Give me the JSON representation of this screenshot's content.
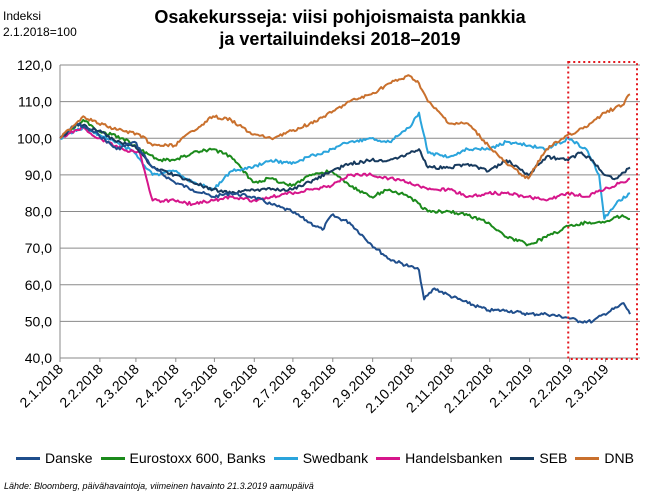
{
  "chart_data": {
    "type": "line",
    "title": "Osakekursseja: viisi pohjoismaista pankkia ja vertailuindeksi 2018–2019",
    "title_lines": [
      "Osakekursseja: viisi pohjoismaista pankkia",
      "ja vertailuindeksi 2018–2019"
    ],
    "ylabel_lines": [
      "Indeksi",
      "2.1.2018=100"
    ],
    "ylim": [
      40,
      120
    ],
    "yticks": [
      "40,0",
      "50,0",
      "60,0",
      "70,0",
      "80,0",
      "90,0",
      "100,0",
      "110,0",
      "120,0"
    ],
    "ytick_values": [
      40,
      50,
      60,
      70,
      80,
      90,
      100,
      110,
      120
    ],
    "xlim": [
      "2018-01-02",
      "2019-03-21"
    ],
    "xticks": [
      "2.1.2018",
      "2.2.2018",
      "2.3.2018",
      "2.4.2018",
      "2.5.2018",
      "2.6.2018",
      "2.7.2018",
      "2.8.2018",
      "2.9.2018",
      "2.10.2018",
      "2.11.2018",
      "2.12.2018",
      "2.1.2019",
      "2.2.2019",
      "2.3.2019"
    ],
    "xtick_dates": [
      "2018-01-02",
      "2018-02-02",
      "2018-03-02",
      "2018-04-02",
      "2018-05-02",
      "2018-06-02",
      "2018-07-02",
      "2018-08-02",
      "2018-09-02",
      "2018-10-02",
      "2018-11-02",
      "2018-12-02",
      "2019-01-02",
      "2019-02-02",
      "2019-03-02"
    ],
    "grid": "horizontal",
    "highlight_range": [
      "2019-02-01",
      "2019-03-21"
    ],
    "legend_position": "bottom",
    "series": [
      {
        "name": "Danske",
        "color": "#1f4e8c",
        "points": [
          [
            "2018-01-02",
            100
          ],
          [
            "2018-01-15",
            104
          ],
          [
            "2018-02-01",
            101
          ],
          [
            "2018-02-15",
            97
          ],
          [
            "2018-03-01",
            99
          ],
          [
            "2018-03-15",
            92
          ],
          [
            "2018-04-01",
            88
          ],
          [
            "2018-04-15",
            86
          ],
          [
            "2018-05-01",
            84
          ],
          [
            "2018-05-15",
            85
          ],
          [
            "2018-06-01",
            84
          ],
          [
            "2018-06-15",
            82
          ],
          [
            "2018-07-01",
            80
          ],
          [
            "2018-07-15",
            77
          ],
          [
            "2018-07-25",
            75
          ],
          [
            "2018-08-01",
            79
          ],
          [
            "2018-08-15",
            77
          ],
          [
            "2018-09-01",
            71
          ],
          [
            "2018-09-15",
            67
          ],
          [
            "2018-10-01",
            65
          ],
          [
            "2018-10-08",
            64
          ],
          [
            "2018-10-12",
            56
          ],
          [
            "2018-10-20",
            59
          ],
          [
            "2018-11-01",
            57
          ],
          [
            "2018-11-15",
            55
          ],
          [
            "2018-12-01",
            53
          ],
          [
            "2018-12-15",
            53
          ],
          [
            "2019-01-01",
            52
          ],
          [
            "2019-01-15",
            52
          ],
          [
            "2019-02-01",
            51
          ],
          [
            "2019-02-10",
            50
          ],
          [
            "2019-02-20",
            50
          ],
          [
            "2019-03-01",
            52
          ],
          [
            "2019-03-12",
            54
          ],
          [
            "2019-03-16",
            55
          ],
          [
            "2019-03-21",
            52
          ]
        ]
      },
      {
        "name": "Eurostoxx 600, Banks",
        "color": "#1b8a1b",
        "points": [
          [
            "2018-01-02",
            100
          ],
          [
            "2018-01-20",
            105
          ],
          [
            "2018-02-01",
            102
          ],
          [
            "2018-02-20",
            100
          ],
          [
            "2018-03-05",
            97
          ],
          [
            "2018-03-20",
            94
          ],
          [
            "2018-04-01",
            94
          ],
          [
            "2018-04-15",
            96
          ],
          [
            "2018-05-01",
            97
          ],
          [
            "2018-05-15",
            95
          ],
          [
            "2018-06-01",
            88
          ],
          [
            "2018-06-15",
            89
          ],
          [
            "2018-07-01",
            87
          ],
          [
            "2018-07-15",
            90
          ],
          [
            "2018-08-01",
            91
          ],
          [
            "2018-08-15",
            87
          ],
          [
            "2018-09-01",
            84
          ],
          [
            "2018-09-15",
            86
          ],
          [
            "2018-10-01",
            84
          ],
          [
            "2018-10-15",
            80
          ],
          [
            "2018-11-01",
            80
          ],
          [
            "2018-11-15",
            79
          ],
          [
            "2018-12-01",
            77
          ],
          [
            "2018-12-15",
            73
          ],
          [
            "2019-01-01",
            71
          ],
          [
            "2019-01-15",
            73
          ],
          [
            "2019-02-01",
            76
          ],
          [
            "2019-02-15",
            77
          ],
          [
            "2019-03-01",
            77
          ],
          [
            "2019-03-15",
            79
          ],
          [
            "2019-03-21",
            78
          ]
        ]
      },
      {
        "name": "Swedbank",
        "color": "#2aa4dc",
        "points": [
          [
            "2018-01-02",
            100
          ],
          [
            "2018-01-20",
            103
          ],
          [
            "2018-02-01",
            101
          ],
          [
            "2018-02-15",
            99
          ],
          [
            "2018-03-01",
            96
          ],
          [
            "2018-03-15",
            90
          ],
          [
            "2018-04-01",
            91
          ],
          [
            "2018-04-15",
            88
          ],
          [
            "2018-05-01",
            86
          ],
          [
            "2018-05-15",
            91
          ],
          [
            "2018-06-01",
            92
          ],
          [
            "2018-06-15",
            94
          ],
          [
            "2018-07-01",
            93
          ],
          [
            "2018-07-15",
            95
          ],
          [
            "2018-08-01",
            97
          ],
          [
            "2018-08-15",
            99
          ],
          [
            "2018-09-01",
            100
          ],
          [
            "2018-09-15",
            99
          ],
          [
            "2018-10-01",
            103
          ],
          [
            "2018-10-08",
            107
          ],
          [
            "2018-10-15",
            96
          ],
          [
            "2018-11-01",
            95
          ],
          [
            "2018-11-15",
            97
          ],
          [
            "2018-12-01",
            97
          ],
          [
            "2018-12-15",
            99
          ],
          [
            "2019-01-01",
            98
          ],
          [
            "2019-01-15",
            97
          ],
          [
            "2019-02-01",
            100
          ],
          [
            "2019-02-15",
            97
          ],
          [
            "2019-02-25",
            90
          ],
          [
            "2019-03-01",
            78
          ],
          [
            "2019-03-10",
            82
          ],
          [
            "2019-03-21",
            85
          ]
        ]
      },
      {
        "name": "Handelsbanken",
        "color": "#d6168b",
        "points": [
          [
            "2018-01-02",
            100
          ],
          [
            "2018-01-20",
            103
          ],
          [
            "2018-02-01",
            100
          ],
          [
            "2018-02-20",
            97
          ],
          [
            "2018-03-05",
            96
          ],
          [
            "2018-03-15",
            83
          ],
          [
            "2018-04-01",
            83
          ],
          [
            "2018-04-15",
            82
          ],
          [
            "2018-05-01",
            83
          ],
          [
            "2018-05-15",
            84
          ],
          [
            "2018-06-01",
            83
          ],
          [
            "2018-06-15",
            84
          ],
          [
            "2018-07-01",
            85
          ],
          [
            "2018-07-15",
            86
          ],
          [
            "2018-08-01",
            87
          ],
          [
            "2018-08-15",
            90
          ],
          [
            "2018-09-01",
            90
          ],
          [
            "2018-09-15",
            89
          ],
          [
            "2018-10-01",
            88
          ],
          [
            "2018-10-15",
            86
          ],
          [
            "2018-11-01",
            86
          ],
          [
            "2018-11-15",
            84
          ],
          [
            "2018-12-01",
            85
          ],
          [
            "2018-12-15",
            85
          ],
          [
            "2019-01-01",
            84
          ],
          [
            "2019-01-15",
            83
          ],
          [
            "2019-02-01",
            85
          ],
          [
            "2019-02-15",
            84
          ],
          [
            "2019-03-01",
            86
          ],
          [
            "2019-03-15",
            88
          ],
          [
            "2019-03-21",
            89
          ]
        ]
      },
      {
        "name": "SEB",
        "color": "#173a5e",
        "points": [
          [
            "2018-01-02",
            100
          ],
          [
            "2018-01-15",
            104
          ],
          [
            "2018-02-01",
            102
          ],
          [
            "2018-02-15",
            99
          ],
          [
            "2018-03-01",
            98
          ],
          [
            "2018-03-15",
            92
          ],
          [
            "2018-04-01",
            90
          ],
          [
            "2018-04-15",
            88
          ],
          [
            "2018-05-01",
            86
          ],
          [
            "2018-05-15",
            85
          ],
          [
            "2018-06-01",
            86
          ],
          [
            "2018-06-15",
            86
          ],
          [
            "2018-07-01",
            86
          ],
          [
            "2018-07-15",
            88
          ],
          [
            "2018-08-01",
            91
          ],
          [
            "2018-08-15",
            93
          ],
          [
            "2018-09-01",
            94
          ],
          [
            "2018-09-15",
            94
          ],
          [
            "2018-10-01",
            96
          ],
          [
            "2018-10-08",
            97
          ],
          [
            "2018-10-15",
            92
          ],
          [
            "2018-11-01",
            92
          ],
          [
            "2018-11-15",
            93
          ],
          [
            "2018-12-01",
            91
          ],
          [
            "2018-12-15",
            94
          ],
          [
            "2019-01-01",
            90
          ],
          [
            "2019-01-15",
            95
          ],
          [
            "2019-02-01",
            94
          ],
          [
            "2019-02-10",
            96
          ],
          [
            "2019-02-20",
            94
          ],
          [
            "2019-03-01",
            90
          ],
          [
            "2019-03-10",
            89
          ],
          [
            "2019-03-21",
            92
          ]
        ]
      },
      {
        "name": "DNB",
        "color": "#c9702d",
        "points": [
          [
            "2018-01-02",
            100
          ],
          [
            "2018-01-20",
            106
          ],
          [
            "2018-02-01",
            104
          ],
          [
            "2018-02-20",
            102
          ],
          [
            "2018-03-05",
            101
          ],
          [
            "2018-03-15",
            98
          ],
          [
            "2018-04-01",
            98
          ],
          [
            "2018-04-15",
            102
          ],
          [
            "2018-05-01",
            106
          ],
          [
            "2018-05-15",
            105
          ],
          [
            "2018-06-01",
            101
          ],
          [
            "2018-06-15",
            100
          ],
          [
            "2018-07-01",
            102
          ],
          [
            "2018-07-15",
            104
          ],
          [
            "2018-08-01",
            107
          ],
          [
            "2018-08-15",
            110
          ],
          [
            "2018-09-01",
            112
          ],
          [
            "2018-09-15",
            115
          ],
          [
            "2018-10-01",
            117
          ],
          [
            "2018-10-08",
            115
          ],
          [
            "2018-10-15",
            110
          ],
          [
            "2018-11-01",
            104
          ],
          [
            "2018-11-15",
            104
          ],
          [
            "2018-12-01",
            98
          ],
          [
            "2018-12-15",
            93
          ],
          [
            "2019-01-01",
            89
          ],
          [
            "2019-01-15",
            97
          ],
          [
            "2019-02-01",
            101
          ],
          [
            "2019-02-15",
            103
          ],
          [
            "2019-03-01",
            107
          ],
          [
            "2019-03-15",
            109
          ],
          [
            "2019-03-21",
            112
          ]
        ]
      }
    ]
  },
  "legend_items": [
    "Danske",
    "Eurostoxx 600, Banks",
    "Swedbank",
    "Handelsbanken",
    "SEB",
    "DNB"
  ],
  "source": "Lähde: Bloomberg, päivähavaintoja, viimeinen havainto 21.3.2019 aamupäivä"
}
